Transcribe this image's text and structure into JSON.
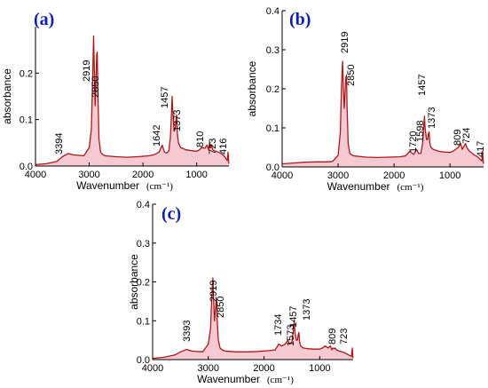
{
  "colors": {
    "spectrum": "#b01818",
    "fill": "#f4bcc8",
    "panel_label": "#0b1fb0",
    "axis": "#000000"
  },
  "xlabel": "Wavenumber",
  "xunit": "(cm⁻¹)",
  "chart_data": [
    {
      "type": "line",
      "panel_label": "(a)",
      "xlabel": "Wavenumber (cm⁻¹)",
      "ylabel": "absorbance",
      "xlim": [
        4000,
        400
      ],
      "ylim": [
        0,
        0.3
      ],
      "x_ticks": [
        4000,
        3000,
        2000,
        1000
      ],
      "x_tick_labels": [
        "4000",
        "3000",
        "2000",
        "1000"
      ],
      "y_ticks": [
        0.0,
        0.1,
        0.2
      ],
      "y_tick_labels": [
        "0.0",
        "0.1",
        "0.2"
      ],
      "x": [
        4000,
        3800,
        3600,
        3500,
        3394,
        3300,
        3100,
        3000,
        2960,
        2940,
        2930,
        2919,
        2905,
        2890,
        2870,
        2860,
        2850,
        2840,
        2820,
        2790,
        2750,
        2700,
        2500,
        2300,
        2100,
        1900,
        1800,
        1700,
        1642,
        1600,
        1560,
        1520,
        1490,
        1470,
        1457,
        1445,
        1420,
        1400,
        1385,
        1373,
        1360,
        1340,
        1300,
        1200,
        1100,
        1000,
        950,
        900,
        850,
        810,
        780,
        760,
        740,
        723,
        700,
        650,
        600,
        560,
        520,
        480,
        450,
        430,
        416,
        405,
        400
      ],
      "y": [
        0.003,
        0.005,
        0.01,
        0.02,
        0.027,
        0.024,
        0.022,
        0.04,
        0.08,
        0.17,
        0.22,
        0.28,
        0.21,
        0.13,
        0.2,
        0.24,
        0.245,
        0.17,
        0.06,
        0.03,
        0.025,
        0.022,
        0.02,
        0.019,
        0.02,
        0.022,
        0.024,
        0.03,
        0.045,
        0.03,
        0.028,
        0.032,
        0.06,
        0.11,
        0.15,
        0.12,
        0.075,
        0.08,
        0.1,
        0.11,
        0.07,
        0.05,
        0.04,
        0.035,
        0.033,
        0.032,
        0.035,
        0.04,
        0.038,
        0.045,
        0.035,
        0.05,
        0.04,
        0.045,
        0.035,
        0.032,
        0.03,
        0.028,
        0.025,
        0.02,
        0.015,
        0.012,
        0.03,
        0.01,
        0.005
      ],
      "peak_labels": [
        "3394",
        "2919",
        "2850",
        "1642",
        "1457",
        "1373",
        "810",
        "723",
        "416"
      ]
    },
    {
      "type": "line",
      "panel_label": "(b)",
      "xlabel": "Wavenumber (cm⁻¹)",
      "ylabel": "absorbance",
      "xlim": [
        4000,
        400
      ],
      "ylim": [
        0,
        0.4
      ],
      "x_ticks": [
        4000,
        3000,
        2000,
        1000
      ],
      "x_tick_labels": [
        "4000",
        "3000",
        "2000",
        "1000"
      ],
      "y_ticks": [
        0.0,
        0.1,
        0.2,
        0.3,
        0.4
      ],
      "y_tick_labels": [
        "0.0",
        "0.1",
        "0.2",
        "0.3",
        "0.4"
      ],
      "x": [
        4000,
        3800,
        3600,
        3400,
        3200,
        3100,
        3000,
        2960,
        2940,
        2930,
        2919,
        2905,
        2890,
        2870,
        2860,
        2850,
        2840,
        2820,
        2790,
        2750,
        2700,
        2500,
        2300,
        2100,
        1900,
        1800,
        1720,
        1650,
        1598,
        1560,
        1520,
        1490,
        1470,
        1457,
        1445,
        1420,
        1400,
        1385,
        1373,
        1360,
        1340,
        1300,
        1200,
        1100,
        1000,
        950,
        900,
        850,
        809,
        780,
        760,
        740,
        724,
        700,
        650,
        600,
        560,
        520,
        480,
        450,
        430,
        417,
        405,
        400
      ],
      "y": [
        0.008,
        0.01,
        0.012,
        0.013,
        0.013,
        0.014,
        0.03,
        0.09,
        0.2,
        0.24,
        0.27,
        0.2,
        0.15,
        0.21,
        0.23,
        0.235,
        0.16,
        0.06,
        0.035,
        0.03,
        0.028,
        0.025,
        0.024,
        0.025,
        0.026,
        0.028,
        0.04,
        0.032,
        0.045,
        0.034,
        0.035,
        0.06,
        0.1,
        0.13,
        0.1,
        0.07,
        0.07,
        0.085,
        0.09,
        0.06,
        0.05,
        0.045,
        0.04,
        0.038,
        0.037,
        0.04,
        0.045,
        0.05,
        0.06,
        0.045,
        0.05,
        0.055,
        0.06,
        0.05,
        0.04,
        0.035,
        0.03,
        0.027,
        0.022,
        0.018,
        0.015,
        0.04,
        0.012,
        0.008
      ],
      "peak_labels": [
        "2919",
        "2850",
        "1720",
        "1598",
        "1457",
        "1373",
        "809",
        "724",
        "417"
      ]
    },
    {
      "type": "line",
      "panel_label": "(c)",
      "xlabel": "Wavenumber (cm⁻¹)",
      "ylabel": "absorbance",
      "xlim": [
        4000,
        400
      ],
      "ylim": [
        0,
        0.4
      ],
      "x_ticks": [
        4000,
        3000,
        2000,
        1000
      ],
      "x_tick_labels": [
        "4000",
        "3000",
        "2000",
        "1000"
      ],
      "y_ticks": [
        0.0,
        0.1,
        0.2,
        0.3,
        0.4
      ],
      "y_tick_labels": [
        "0.0",
        "0.1",
        "0.2",
        "0.3",
        "0.4"
      ],
      "x": [
        4000,
        3800,
        3600,
        3500,
        3393,
        3300,
        3100,
        3000,
        2960,
        2940,
        2930,
        2919,
        2905,
        2890,
        2870,
        2860,
        2850,
        2840,
        2820,
        2790,
        2750,
        2700,
        2500,
        2300,
        2100,
        1900,
        1800,
        1734,
        1680,
        1620,
        1573,
        1540,
        1500,
        1470,
        1457,
        1445,
        1420,
        1400,
        1385,
        1373,
        1360,
        1340,
        1300,
        1200,
        1100,
        1000,
        950,
        900,
        850,
        809,
        780,
        760,
        740,
        723,
        700,
        650,
        600,
        560,
        520,
        480,
        450,
        430,
        415,
        405,
        400
      ],
      "y": [
        0.003,
        0.006,
        0.012,
        0.02,
        0.026,
        0.022,
        0.02,
        0.04,
        0.08,
        0.15,
        0.18,
        0.21,
        0.16,
        0.1,
        0.13,
        0.15,
        0.155,
        0.1,
        0.05,
        0.03,
        0.025,
        0.022,
        0.02,
        0.02,
        0.021,
        0.023,
        0.025,
        0.04,
        0.035,
        0.04,
        0.05,
        0.04,
        0.045,
        0.08,
        0.1,
        0.07,
        0.05,
        0.05,
        0.065,
        0.07,
        0.045,
        0.035,
        0.03,
        0.028,
        0.027,
        0.027,
        0.03,
        0.035,
        0.03,
        0.035,
        0.025,
        0.03,
        0.028,
        0.03,
        0.025,
        0.022,
        0.02,
        0.018,
        0.015,
        0.012,
        0.01,
        0.008,
        0.03,
        0.006,
        0.004
      ],
      "peak_labels": [
        "3393",
        "2919",
        "2850",
        "1734",
        "1573",
        "1457",
        "1373",
        "809",
        "723"
      ]
    }
  ]
}
